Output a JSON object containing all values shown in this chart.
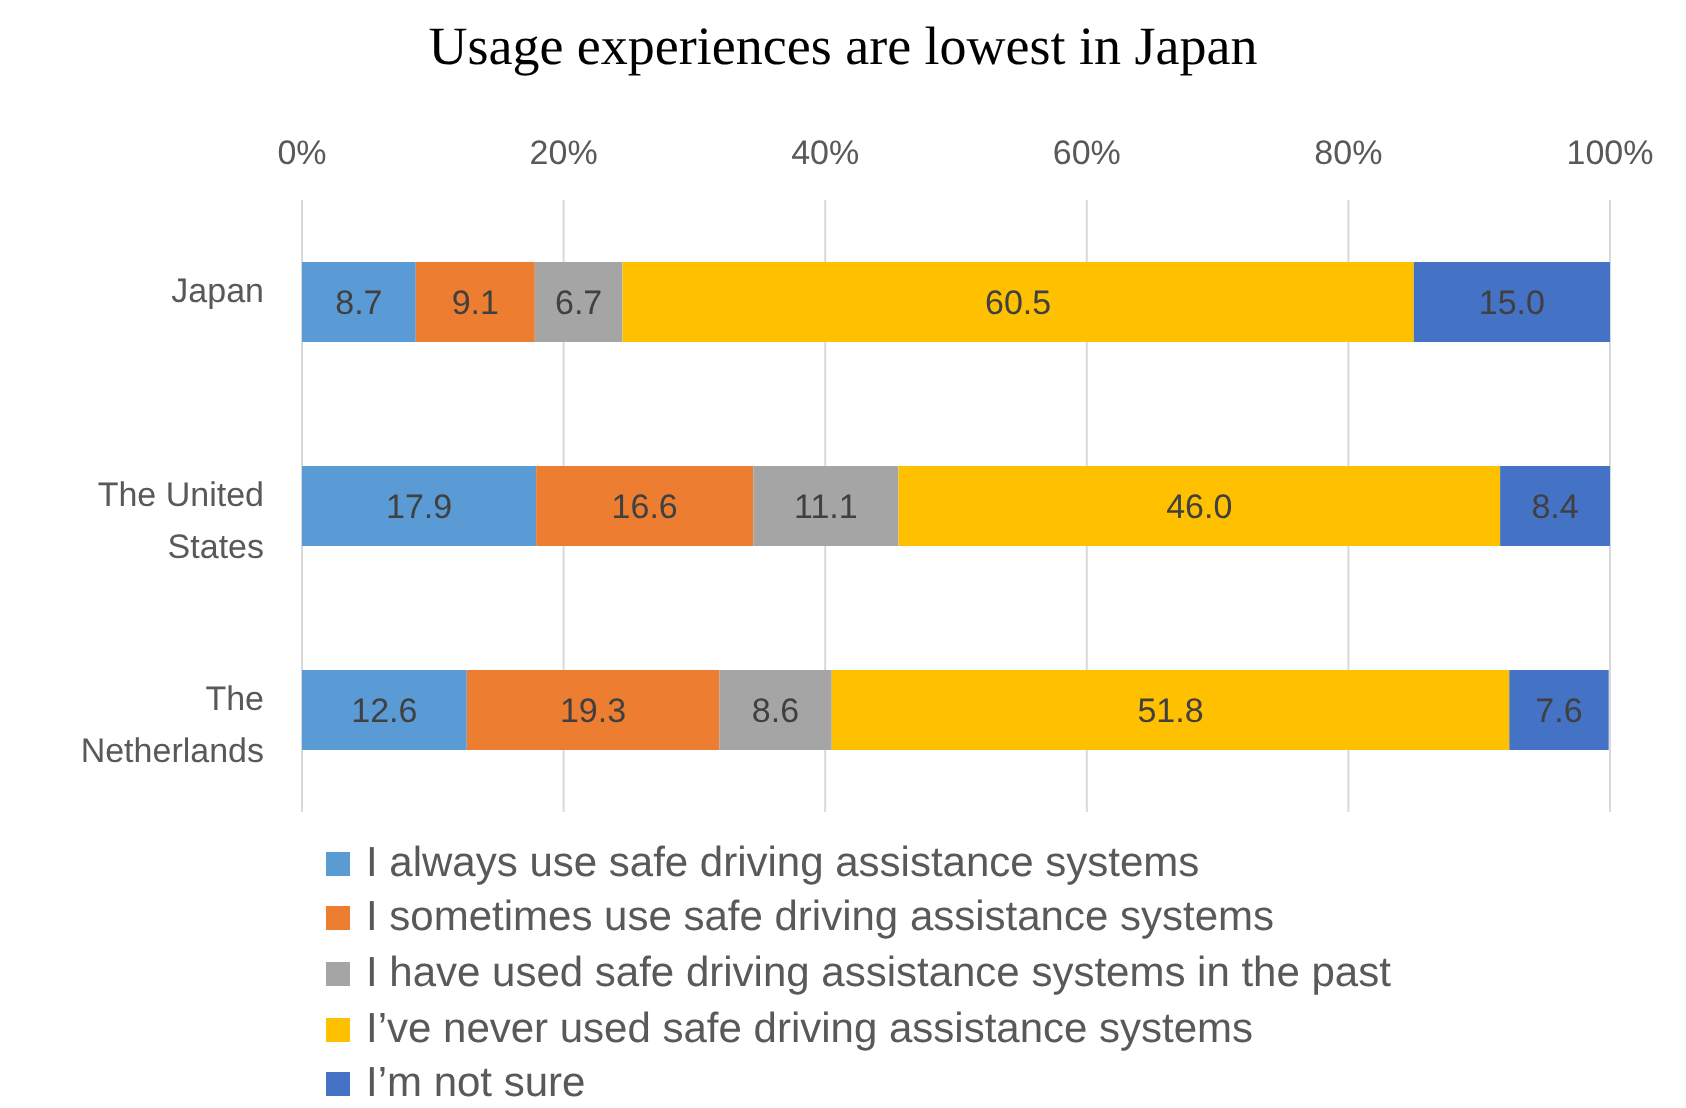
{
  "chart_data": {
    "type": "bar",
    "title": "Usage experiences are lowest in Japan",
    "orientation": "horizontal",
    "stacked": true,
    "categories": [
      "Japan",
      "The United States",
      "The Netherlands"
    ],
    "series": [
      {
        "name": "I always use safe driving assistance systems",
        "color": "#5b9bd5",
        "values": [
          8.7,
          17.9,
          12.6
        ],
        "value_labels": [
          "8.7",
          "17.9",
          "12.6"
        ]
      },
      {
        "name": "I sometimes use safe driving assistance systems",
        "color": "#ed7d31",
        "values": [
          9.1,
          16.6,
          19.3
        ],
        "value_labels": [
          "9.1",
          "16.6",
          "19.3"
        ]
      },
      {
        "name": "I have used safe driving assistance systems in the past",
        "color": "#a5a5a5",
        "values": [
          6.7,
          11.1,
          8.6
        ],
        "value_labels": [
          "6.7",
          "11.1",
          "8.6"
        ]
      },
      {
        "name": "I’ve never used safe driving assistance systems",
        "color": "#ffc000",
        "values": [
          60.5,
          46.0,
          51.8
        ],
        "value_labels": [
          "60.5",
          "46.0",
          "51.8"
        ]
      },
      {
        "name": "I’m not sure",
        "color": "#4472c4",
        "values": [
          15.0,
          8.4,
          7.6
        ],
        "value_labels": [
          "15.0",
          "8.4",
          "7.6"
        ]
      }
    ],
    "xlim": [
      0,
      100
    ],
    "xticks": [
      {
        "value": 0,
        "label": "0%"
      },
      {
        "value": 20,
        "label": "20%"
      },
      {
        "value": 40,
        "label": "40%"
      },
      {
        "value": 60,
        "label": "60%"
      },
      {
        "value": 80,
        "label": "80%"
      },
      {
        "value": 100,
        "label": "100%"
      }
    ],
    "grid": "x",
    "legend": "bottom"
  }
}
